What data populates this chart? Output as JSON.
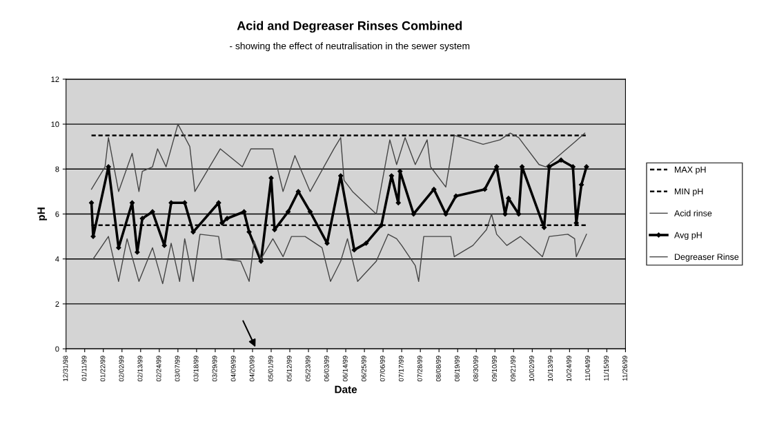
{
  "chart_data": {
    "type": "line",
    "title": "Acid and Degreaser Rinses Combined",
    "subtitle": "- showing the effect of neutralisation in the sewer system",
    "xlabel": "Date",
    "ylabel": "pH",
    "xlim": [
      "1998-12-31",
      "1999-11-26"
    ],
    "xticks": [
      {
        "value": "1998-12-31",
        "label": "12/31/98"
      },
      {
        "value": "1999-01-11",
        "label": "01/11/99"
      },
      {
        "value": "1999-01-22",
        "label": "01/22/99"
      },
      {
        "value": "1999-02-02",
        "label": "02/02/99"
      },
      {
        "value": "1999-02-13",
        "label": "02/13/99"
      },
      {
        "value": "1999-02-24",
        "label": "02/24/99"
      },
      {
        "value": "1999-03-07",
        "label": "03/07/99"
      },
      {
        "value": "1999-03-18",
        "label": "03/18/99"
      },
      {
        "value": "1999-03-29",
        "label": "03/29/99"
      },
      {
        "value": "1999-04-09",
        "label": "04/09/99"
      },
      {
        "value": "1999-04-20",
        "label": "04/20/99"
      },
      {
        "value": "1999-05-01",
        "label": "05/01/99"
      },
      {
        "value": "1999-05-12",
        "label": "05/12/99"
      },
      {
        "value": "1999-05-23",
        "label": "05/23/99"
      },
      {
        "value": "1999-06-03",
        "label": "06/03/99"
      },
      {
        "value": "1999-06-14",
        "label": "06/14/99"
      },
      {
        "value": "1999-06-25",
        "label": "06/25/99"
      },
      {
        "value": "1999-07-06",
        "label": "07/06/99"
      },
      {
        "value": "1999-07-17",
        "label": "07/17/99"
      },
      {
        "value": "1999-07-28",
        "label": "07/28/99"
      },
      {
        "value": "1999-08-08",
        "label": "08/08/99"
      },
      {
        "value": "1999-08-19",
        "label": "08/19/99"
      },
      {
        "value": "1999-08-30",
        "label": "08/30/99"
      },
      {
        "value": "1999-09-10",
        "label": "09/10/99"
      },
      {
        "value": "1999-09-21",
        "label": "09/21/99"
      },
      {
        "value": "1999-10-02",
        "label": "10/02/99"
      },
      {
        "value": "1999-10-13",
        "label": "10/13/99"
      },
      {
        "value": "1999-10-24",
        "label": "10/24/99"
      },
      {
        "value": "1999-11-04",
        "label": "11/04/99"
      },
      {
        "value": "1999-11-15",
        "label": "11/15/99"
      },
      {
        "value": "1999-11-26",
        "label": "11/26/99"
      }
    ],
    "ylim": [
      0,
      12
    ],
    "yticks": [
      0,
      2,
      4,
      6,
      8,
      10,
      12
    ],
    "grid": "y",
    "legend": "right",
    "series": [
      {
        "name": "MAX pH",
        "color": "#000000",
        "line_style": "dashed",
        "x": [
          "1999-01-15",
          "1999-11-03"
        ],
        "values": [
          9.5,
          9.5
        ]
      },
      {
        "name": "MIN pH",
        "color": "#000000",
        "line_style": "dashed",
        "x": [
          "1999-01-15",
          "1999-11-03"
        ],
        "values": [
          5.5,
          5.5
        ]
      },
      {
        "name": "Acid rinse",
        "color": "#444444",
        "line_style": "solid",
        "x": [
          "1999-01-15",
          "1999-01-23",
          "1999-01-25",
          "1999-01-31",
          "1999-02-08",
          "1999-02-12",
          "1999-02-14",
          "1999-02-20",
          "1999-02-23",
          "1999-02-28",
          "1999-03-07",
          "1999-03-14",
          "1999-03-17",
          "1999-04-01",
          "1999-04-14",
          "1999-04-19",
          "1999-05-02",
          "1999-05-08",
          "1999-05-15",
          "1999-05-24",
          "1999-06-07",
          "1999-06-11",
          "1999-06-13",
          "1999-06-18",
          "1999-07-02",
          "1999-07-10",
          "1999-07-14",
          "1999-07-19",
          "1999-07-25",
          "1999-08-01",
          "1999-08-03",
          "1999-08-12",
          "1999-08-17",
          "1999-09-03",
          "1999-09-13",
          "1999-09-19",
          "1999-09-24",
          "1999-10-06",
          "1999-10-10",
          "1999-10-27",
          "1999-11-02"
        ],
        "values": [
          7.1,
          8.1,
          9.4,
          7.0,
          8.7,
          7.0,
          7.9,
          8.1,
          8.9,
          8.1,
          10.0,
          9.0,
          7.0,
          8.9,
          8.1,
          8.9,
          8.9,
          7.0,
          8.6,
          7.0,
          8.9,
          9.4,
          7.5,
          7.0,
          6.0,
          9.3,
          8.2,
          9.4,
          8.2,
          9.3,
          8.1,
          7.2,
          9.5,
          9.1,
          9.3,
          9.6,
          9.4,
          8.2,
          8.1,
          9.2,
          9.6
        ]
      },
      {
        "name": "Avg pH",
        "color": "#000000",
        "line_style": "solid",
        "marker": "diamond",
        "x": [
          "1999-01-15",
          "1999-01-16",
          "1999-01-25",
          "1999-01-31",
          "1999-02-08",
          "1999-02-11",
          "1999-02-14",
          "1999-02-20",
          "1999-02-27",
          "1999-03-03",
          "1999-03-11",
          "1999-03-16",
          "1999-03-31",
          "1999-04-02",
          "1999-04-05",
          "1999-04-15",
          "1999-04-18",
          "1999-04-25",
          "1999-05-01",
          "1999-05-03",
          "1999-05-11",
          "1999-05-17",
          "1999-05-24",
          "1999-06-03",
          "1999-06-11",
          "1999-06-19",
          "1999-06-26",
          "1999-07-05",
          "1999-07-11",
          "1999-07-15",
          "1999-07-16",
          "1999-07-24",
          "1999-08-05",
          "1999-08-12",
          "1999-08-18",
          "1999-09-04",
          "1999-09-11",
          "1999-09-16",
          "1999-09-18",
          "1999-09-24",
          "1999-09-26",
          "1999-10-09",
          "1999-10-12",
          "1999-10-19",
          "1999-10-26",
          "1999-10-28",
          "1999-10-31",
          "1999-11-03"
        ],
        "values": [
          6.5,
          5.0,
          8.1,
          4.5,
          6.5,
          4.3,
          5.8,
          6.1,
          4.6,
          6.5,
          6.5,
          5.2,
          6.5,
          5.6,
          5.8,
          6.1,
          5.2,
          3.9,
          7.6,
          5.3,
          6.1,
          7.0,
          6.1,
          4.7,
          7.7,
          4.4,
          4.7,
          5.5,
          7.7,
          6.5,
          7.9,
          6.0,
          7.1,
          6.0,
          6.8,
          7.1,
          8.1,
          6.0,
          6.7,
          6.0,
          8.1,
          5.4,
          8.1,
          8.4,
          8.1,
          5.6,
          7.3,
          8.1
        ]
      },
      {
        "name": "Degreaser Rinse",
        "color": "#444444",
        "line_style": "solid",
        "x": [
          "1999-01-16",
          "1999-01-25",
          "1999-01-31",
          "1999-02-05",
          "1999-02-12",
          "1999-02-20",
          "1999-02-26",
          "1999-03-03",
          "1999-03-08",
          "1999-03-11",
          "1999-03-16",
          "1999-03-20",
          "1999-03-31",
          "1999-04-02",
          "1999-04-13",
          "1999-04-18",
          "1999-04-21",
          "1999-04-25",
          "1999-05-02",
          "1999-05-08",
          "1999-05-13",
          "1999-05-21",
          "1999-05-31",
          "1999-06-05",
          "1999-06-11",
          "1999-06-15",
          "1999-06-21",
          "1999-07-02",
          "1999-07-09",
          "1999-07-14",
          "1999-07-17",
          "1999-07-25",
          "1999-07-27",
          "1999-07-30",
          "1999-08-15",
          "1999-08-17",
          "1999-08-28",
          "1999-09-05",
          "1999-09-08",
          "1999-09-11",
          "1999-09-17",
          "1999-09-25",
          "1999-10-01",
          "1999-10-08",
          "1999-10-12",
          "1999-10-23",
          "1999-10-27",
          "1999-10-28",
          "1999-11-03"
        ],
        "values": [
          4.0,
          5.0,
          3.0,
          4.9,
          3.0,
          4.5,
          2.9,
          4.7,
          3.0,
          4.9,
          3.0,
          5.1,
          5.0,
          4.0,
          3.9,
          3.0,
          4.8,
          4.0,
          4.9,
          4.1,
          5.0,
          5.0,
          4.5,
          3.0,
          3.9,
          4.9,
          3.0,
          3.9,
          5.1,
          4.9,
          4.6,
          3.7,
          3.0,
          5.0,
          5.0,
          4.1,
          4.6,
          5.3,
          6.0,
          5.1,
          4.6,
          5.0,
          4.6,
          4.1,
          5.0,
          5.1,
          4.9,
          4.1,
          5.1
        ]
      }
    ]
  }
}
